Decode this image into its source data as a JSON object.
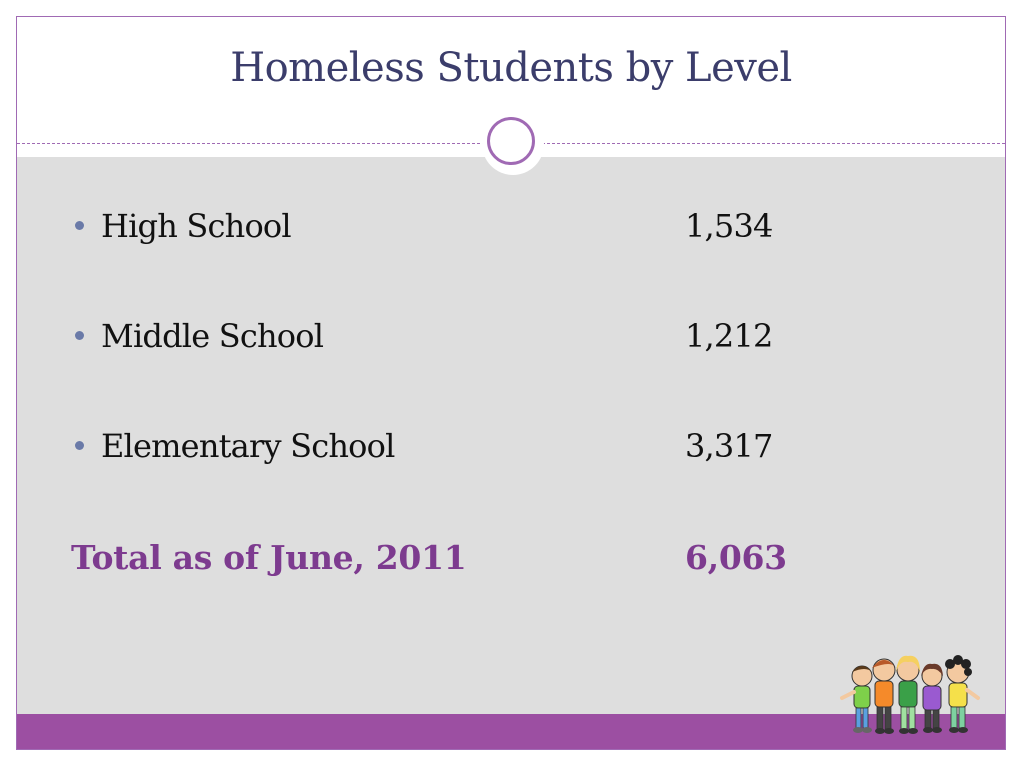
{
  "slide": {
    "title": "Homeless Students by Level",
    "items": [
      {
        "label": "High School",
        "value": "1,534"
      },
      {
        "label": "Middle School",
        "value": "1,212"
      },
      {
        "label": "Elementary School",
        "value": "3,317"
      }
    ],
    "total": {
      "label": "Total as of June, 2011",
      "value": "6,063"
    }
  },
  "colors": {
    "accent": "#9c4fa2",
    "title": "#3b3d6b",
    "total": "#7d3b8f",
    "content_bg": "#dedede",
    "bullet": "#6a7aa8"
  },
  "icons": {
    "ornament": "ring-ornament-icon",
    "clipart": "children-group-icon"
  }
}
